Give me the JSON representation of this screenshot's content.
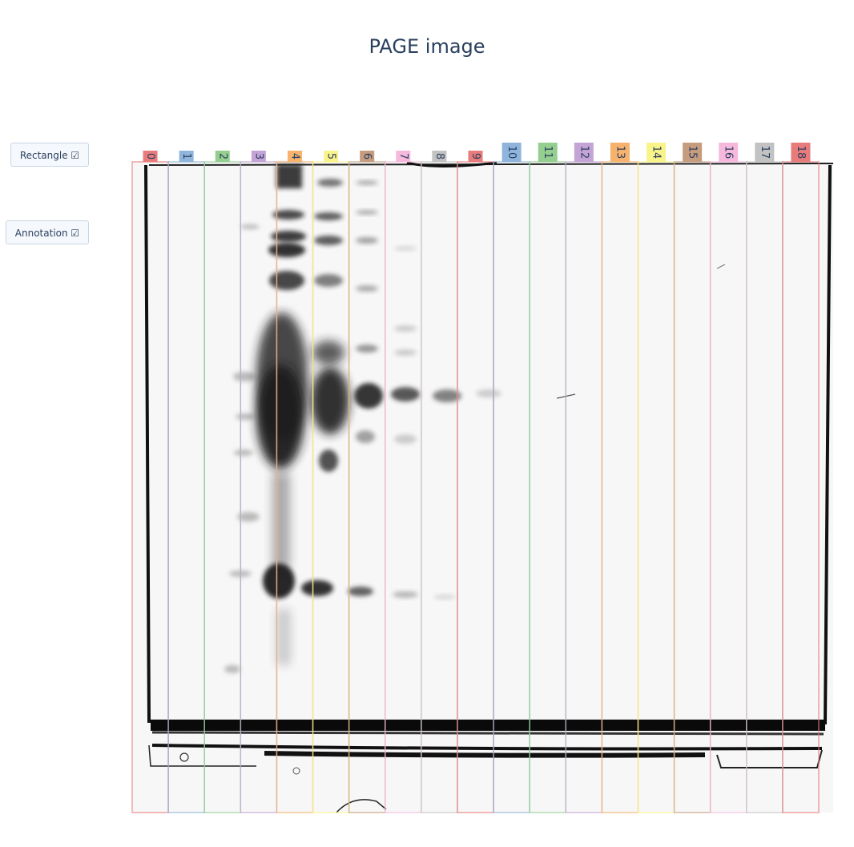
{
  "title": "PAGE image",
  "buttons": {
    "rectangle": "Rectangle ☑",
    "annotation": "Annotation ☑"
  },
  "lanes": [
    {
      "label": "0",
      "color": "#e87b7b"
    },
    {
      "label": "1",
      "color": "#8fb5dc"
    },
    {
      "label": "2",
      "color": "#94cf8f"
    },
    {
      "label": "3",
      "color": "#c4a3d6"
    },
    {
      "label": "4",
      "color": "#f7b36e"
    },
    {
      "label": "5",
      "color": "#f9f48a"
    },
    {
      "label": "6",
      "color": "#c69c7e"
    },
    {
      "label": "7",
      "color": "#f6b9dd"
    },
    {
      "label": "8",
      "color": "#c2c2c2"
    },
    {
      "label": "9",
      "color": "#e87b7b"
    },
    {
      "label": "10",
      "color": "#8fb5dc"
    },
    {
      "label": "11",
      "color": "#94cf8f"
    },
    {
      "label": "12",
      "color": "#c4a3d6"
    },
    {
      "label": "13",
      "color": "#f7b36e"
    },
    {
      "label": "14",
      "color": "#f9f48a"
    },
    {
      "label": "15",
      "color": "#c69c7e"
    },
    {
      "label": "16",
      "color": "#f6b9dd"
    },
    {
      "label": "17",
      "color": "#c2c2c2"
    },
    {
      "label": "18",
      "color": "#e87b7b"
    }
  ]
}
